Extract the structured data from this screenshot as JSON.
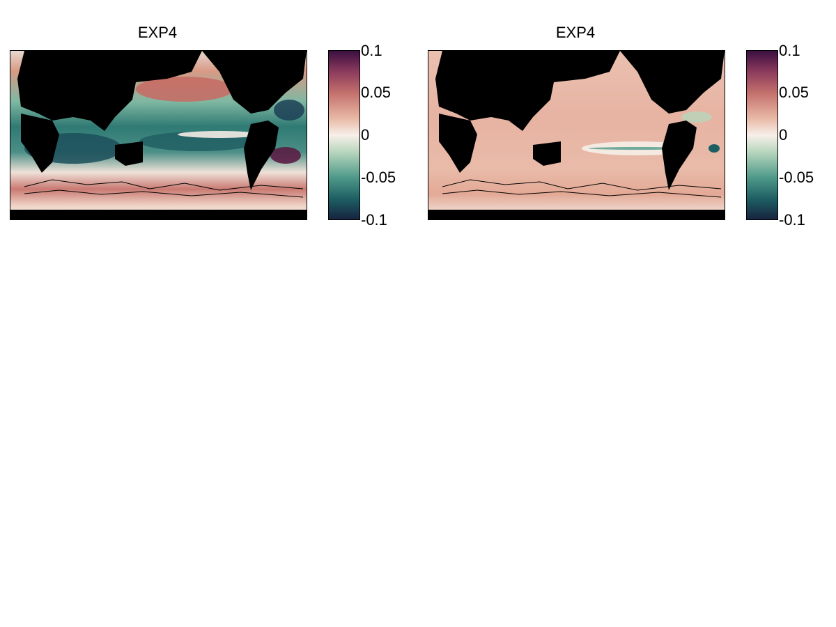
{
  "panels": [
    {
      "title": "EXP4",
      "pattern": "anomaly-mixed"
    },
    {
      "title": "EXP4",
      "pattern": "anomaly-positive"
    }
  ],
  "colorbar": {
    "ticks": [
      "0.1",
      "0.05",
      "0",
      "-0.05",
      "-0.1"
    ],
    "range": [
      -0.1,
      0.1
    ],
    "colors": [
      "#3b0f3f",
      "#8a3a5c",
      "#c4706c",
      "#e8b8a5",
      "#f7efe9",
      "#b8d6bd",
      "#4f9a8a",
      "#1d5e63",
      "#17233f"
    ]
  },
  "land_color": "#000000"
}
